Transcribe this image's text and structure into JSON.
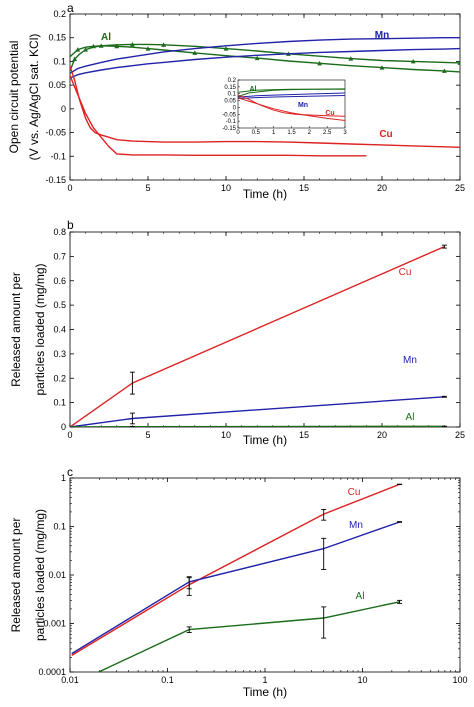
{
  "chart_data": [
    {
      "panel": "a",
      "type": "line",
      "xlabel": "Time (h)",
      "ylabel_lines": [
        "Open circuit potential",
        "(V vs. Ag/AgCl sat. KCl)"
      ],
      "xlim": [
        0,
        25
      ],
      "ylim": [
        -0.15,
        0.2
      ],
      "xticks": [
        0,
        5,
        10,
        15,
        20,
        25
      ],
      "yticks": [
        -0.15,
        -0.1,
        -0.05,
        0,
        0.05,
        0.1,
        0.15,
        0.2
      ],
      "ytick_labels": [
        "-0.15",
        "-0.1",
        "-0.05",
        "0",
        "0.05",
        "0.1",
        "0.15",
        "0.2"
      ],
      "series": [
        {
          "name": "Al",
          "color": "#1a6b1a",
          "marker": "triangle",
          "x": [
            0,
            0.3,
            0.6,
            1,
            1.5,
            2,
            3,
            4,
            5,
            6,
            8,
            10,
            12,
            14,
            16,
            18,
            20,
            22,
            24,
            25
          ],
          "y": [
            0.08,
            0.105,
            0.115,
            0.125,
            0.13,
            0.133,
            0.135,
            0.136,
            0.136,
            0.135,
            0.132,
            0.127,
            0.122,
            0.116,
            0.111,
            0.106,
            0.102,
            0.1,
            0.098,
            0.097
          ]
        },
        {
          "name": "",
          "color": "#1a6b1a",
          "marker": "triangle",
          "x": [
            0,
            0.5,
            1,
            1.5,
            2,
            3,
            4,
            5,
            6,
            8,
            10,
            12,
            14,
            16,
            18,
            20,
            22,
            24,
            25
          ],
          "y": [
            0.11,
            0.125,
            0.13,
            0.132,
            0.133,
            0.132,
            0.13,
            0.127,
            0.124,
            0.118,
            0.112,
            0.107,
            0.101,
            0.096,
            0.091,
            0.087,
            0.083,
            0.08,
            0.078
          ]
        },
        {
          "name": "Mn",
          "color": "#2222aa",
          "marker": "none",
          "x": [
            0,
            0.5,
            1,
            2,
            3,
            4,
            5,
            6,
            8,
            10,
            12,
            14,
            16,
            18,
            20,
            22,
            24,
            25
          ],
          "y": [
            0.075,
            0.085,
            0.09,
            0.098,
            0.105,
            0.11,
            0.115,
            0.12,
            0.127,
            0.133,
            0.138,
            0.142,
            0.145,
            0.147,
            0.148,
            0.149,
            0.15,
            0.15
          ]
        },
        {
          "name": "",
          "color": "#2222aa",
          "marker": "none",
          "x": [
            0,
            0.5,
            1,
            2,
            3,
            4,
            5,
            6,
            8,
            10,
            12,
            14,
            16,
            18,
            20,
            22,
            24,
            25
          ],
          "y": [
            0.065,
            0.072,
            0.076,
            0.082,
            0.087,
            0.091,
            0.095,
            0.098,
            0.104,
            0.109,
            0.113,
            0.116,
            0.119,
            0.121,
            0.123,
            0.125,
            0.126,
            0.127
          ]
        },
        {
          "name": "Cu",
          "color": "#dd2222",
          "marker": "none",
          "x": [
            0,
            0.3,
            0.6,
            1,
            1.3,
            1.6,
            2,
            2.5,
            3,
            4,
            6,
            8,
            10,
            12,
            14,
            16,
            18,
            20,
            22,
            24,
            25
          ],
          "y": [
            0.09,
            0.06,
            0.02,
            -0.02,
            -0.04,
            -0.05,
            -0.055,
            -0.06,
            -0.065,
            -0.068,
            -0.07,
            -0.07,
            -0.069,
            -0.069,
            -0.07,
            -0.072,
            -0.074,
            -0.076,
            -0.078,
            -0.08,
            -0.081
          ]
        },
        {
          "name": "",
          "color": "#dd2222",
          "marker": "none",
          "x": [
            0,
            0.5,
            1,
            1.5,
            2,
            2.5,
            3,
            4,
            6,
            8,
            10,
            12,
            14,
            16,
            18,
            19
          ],
          "y": [
            0.07,
            0.03,
            -0.01,
            -0.04,
            -0.06,
            -0.08,
            -0.095,
            -0.097,
            -0.097,
            -0.098,
            -0.098,
            -0.098,
            -0.098,
            -0.099,
            -0.099,
            -0.099
          ]
        }
      ],
      "inset": {
        "xlim": [
          0,
          3
        ],
        "ylim": [
          -0.15,
          0.2
        ],
        "xticks": [
          0,
          0.5,
          1,
          1.5,
          2,
          2.5,
          3
        ],
        "xtick_labels": [
          "0",
          "0.5",
          "1",
          "1.5",
          "2",
          "2.5",
          "3"
        ],
        "yticks": [
          -0.15,
          -0.1,
          -0.05,
          0,
          0.05,
          0.1,
          0.15,
          0.2
        ],
        "ytick_labels": [
          "-0.15",
          "-0.1",
          "-0.05",
          "0",
          "0.05",
          "0.1",
          "0.15",
          "0.2"
        ],
        "labels": [
          "Al",
          "Mn",
          "Cu"
        ]
      }
    },
    {
      "panel": "b",
      "type": "line",
      "xlabel": "Time (h)",
      "ylabel_lines": [
        "Released amount per",
        "particles loaded (mg/mg)"
      ],
      "xlim": [
        0,
        25
      ],
      "ylim": [
        0,
        0.8
      ],
      "xticks": [
        0,
        5,
        10,
        15,
        20,
        25
      ],
      "yticks": [
        0,
        0.1,
        0.2,
        0.3,
        0.4,
        0.5,
        0.6,
        0.7,
        0.8
      ],
      "ytick_labels": [
        "0",
        "0.1",
        "0.2",
        "0.3",
        "0.4",
        "0.5",
        "0.6",
        "0.7",
        "0.8"
      ],
      "series": [
        {
          "name": "Cu",
          "color": "#dd2222",
          "x": [
            0,
            4,
            24
          ],
          "y": [
            0,
            0.18,
            0.74
          ],
          "err": [
            0,
            0.045,
            0.006
          ]
        },
        {
          "name": "Mn",
          "color": "#2222aa",
          "x": [
            0,
            4,
            24
          ],
          "y": [
            0,
            0.035,
            0.124
          ],
          "err": [
            0,
            0.022,
            0.002
          ]
        },
        {
          "name": "Al",
          "color": "#1a6b1a",
          "x": [
            0,
            4,
            24
          ],
          "y": [
            0,
            0.0013,
            0.0028
          ],
          "err": [
            0,
            0.0008,
            0.0002
          ]
        }
      ]
    },
    {
      "panel": "c",
      "type": "line",
      "scale": "log-log",
      "xlabel": "Time (h)",
      "ylabel_lines": [
        "Released amount per",
        "particles loaded (mg/mg)"
      ],
      "xlim": [
        0.01,
        100
      ],
      "ylim": [
        0.0001,
        1
      ],
      "xticks": [
        0.01,
        0.1,
        1,
        10,
        100
      ],
      "xtick_labels": [
        "0.01",
        "0.1",
        "1",
        "10",
        "100"
      ],
      "yticks": [
        0.0001,
        0.001,
        0.01,
        0.1,
        1
      ],
      "ytick_labels": [
        "0.0001",
        "0.001",
        "0.01",
        "0.1",
        "1"
      ],
      "series": [
        {
          "name": "Cu",
          "color": "#dd2222",
          "x": [
            0.0104,
            0.167,
            4,
            24
          ],
          "y": [
            0.00022,
            0.0063,
            0.18,
            0.74
          ],
          "err_lo": [
            0,
            0.0025,
            0.045,
            0.006
          ],
          "err_hi": [
            0,
            0.0025,
            0.045,
            0.006
          ]
        },
        {
          "name": "Mn",
          "color": "#2222aa",
          "x": [
            0.0104,
            0.167,
            4,
            24
          ],
          "y": [
            0.00024,
            0.0072,
            0.035,
            0.124
          ],
          "err_lo": [
            0,
            0.002,
            0.022,
            0.002
          ],
          "err_hi": [
            0,
            0.002,
            0.022,
            0.002
          ]
        },
        {
          "name": "Al",
          "color": "#1a6b1a",
          "x": [
            0.0104,
            0.167,
            4,
            24
          ],
          "y": [
            5.5e-05,
            0.00075,
            0.0013,
            0.0028
          ],
          "err_lo": [
            0,
            0.0001,
            0.0008,
            0.0002
          ],
          "err_hi": [
            0,
            0.0001,
            0.0009,
            0.0002
          ]
        }
      ]
    }
  ]
}
